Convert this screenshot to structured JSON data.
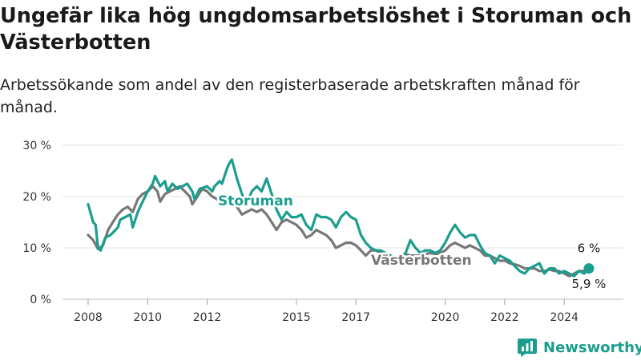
{
  "title": "Ungefär lika hög ungdomsarbetslöshet i Storuman och Västerbotten",
  "subtitle": "Arbetssökande som andel av den registerbaserade arbetskraften månad för månad.",
  "brand": {
    "name": "Newsworthy",
    "color": "#1a9e8e"
  },
  "chart_data": {
    "type": "line",
    "x_tick_labels": [
      "2008",
      "2010",
      "2012",
      "2015",
      "2017",
      "2020",
      "2022",
      "2024"
    ],
    "x_tick_values": [
      2008,
      2010,
      2012,
      2015,
      2017,
      2020,
      2022,
      2024
    ],
    "y_tick_labels": [
      "0 %",
      "10 %",
      "20 %",
      "30 %"
    ],
    "y_tick_values": [
      0,
      10,
      20,
      30
    ],
    "ylim": [
      0,
      30
    ],
    "xlim": [
      2008,
      2025.1
    ],
    "grid": true,
    "series": [
      {
        "name": "Västerbotten",
        "color": "#777777",
        "end_label": "5,9 %",
        "points": [
          [
            2008.0,
            12.5
          ],
          [
            2008.17,
            11.5
          ],
          [
            2008.33,
            9.8
          ],
          [
            2008.5,
            10.5
          ],
          [
            2008.67,
            13.5
          ],
          [
            2008.83,
            15.0
          ],
          [
            2009.0,
            16.5
          ],
          [
            2009.17,
            17.5
          ],
          [
            2009.33,
            18.0
          ],
          [
            2009.5,
            17.0
          ],
          [
            2009.67,
            19.5
          ],
          [
            2009.83,
            20.5
          ],
          [
            2010.0,
            21.0
          ],
          [
            2010.17,
            22.0
          ],
          [
            2010.33,
            21.0
          ],
          [
            2010.42,
            19.0
          ],
          [
            2010.58,
            20.5
          ],
          [
            2010.75,
            21.0
          ],
          [
            2010.92,
            21.5
          ],
          [
            2011.08,
            22.0
          ],
          [
            2011.25,
            21.0
          ],
          [
            2011.42,
            20.0
          ],
          [
            2011.5,
            18.5
          ],
          [
            2011.67,
            20.0
          ],
          [
            2011.83,
            21.5
          ],
          [
            2012.0,
            21.0
          ],
          [
            2012.17,
            20.0
          ],
          [
            2012.33,
            19.5
          ],
          [
            2012.5,
            19.0
          ],
          [
            2012.67,
            19.5
          ],
          [
            2012.83,
            19.5
          ],
          [
            2013.0,
            18.0
          ],
          [
            2013.17,
            16.5
          ],
          [
            2013.33,
            17.0
          ],
          [
            2013.5,
            17.5
          ],
          [
            2013.67,
            17.0
          ],
          [
            2013.83,
            17.5
          ],
          [
            2014.0,
            16.5
          ],
          [
            2014.17,
            15.0
          ],
          [
            2014.33,
            13.5
          ],
          [
            2014.5,
            15.0
          ],
          [
            2014.67,
            15.5
          ],
          [
            2014.83,
            15.0
          ],
          [
            2015.0,
            14.5
          ],
          [
            2015.17,
            13.5
          ],
          [
            2015.33,
            12.0
          ],
          [
            2015.5,
            12.5
          ],
          [
            2015.67,
            13.5
          ],
          [
            2015.83,
            13.0
          ],
          [
            2016.0,
            12.5
          ],
          [
            2016.17,
            11.5
          ],
          [
            2016.33,
            10.0
          ],
          [
            2016.5,
            10.5
          ],
          [
            2016.67,
            11.0
          ],
          [
            2016.83,
            11.0
          ],
          [
            2017.0,
            10.5
          ],
          [
            2017.17,
            9.5
          ],
          [
            2017.33,
            8.5
          ],
          [
            2017.5,
            9.5
          ],
          [
            2017.67,
            9.5
          ],
          [
            2017.83,
            9.0
          ],
          [
            2018.0,
            8.5
          ],
          [
            2018.17,
            8.0
          ],
          [
            2018.33,
            8.0
          ],
          [
            2018.5,
            8.5
          ],
          [
            2018.67,
            8.8
          ],
          [
            2018.83,
            8.5
          ],
          [
            2019.0,
            8.5
          ],
          [
            2019.17,
            8.5
          ],
          [
            2019.33,
            8.8
          ],
          [
            2019.5,
            9.0
          ],
          [
            2019.67,
            8.8
          ],
          [
            2019.83,
            9.0
          ],
          [
            2020.0,
            9.5
          ],
          [
            2020.17,
            10.5
          ],
          [
            2020.33,
            11.0
          ],
          [
            2020.5,
            10.5
          ],
          [
            2020.67,
            10.0
          ],
          [
            2020.83,
            10.5
          ],
          [
            2021.0,
            10.0
          ],
          [
            2021.17,
            9.5
          ],
          [
            2021.33,
            8.5
          ],
          [
            2021.5,
            8.5
          ],
          [
            2021.67,
            8.0
          ],
          [
            2021.83,
            7.5
          ],
          [
            2022.0,
            7.5
          ],
          [
            2022.17,
            7.0
          ],
          [
            2022.33,
            6.8
          ],
          [
            2022.5,
            6.5
          ],
          [
            2022.67,
            6.0
          ],
          [
            2022.83,
            6.0
          ],
          [
            2023.0,
            6.0
          ],
          [
            2023.17,
            5.5
          ],
          [
            2023.33,
            5.5
          ],
          [
            2023.5,
            5.8
          ],
          [
            2023.67,
            5.5
          ],
          [
            2023.83,
            5.5
          ],
          [
            2024.0,
            5.0
          ],
          [
            2024.17,
            4.5
          ],
          [
            2024.33,
            5.0
          ],
          [
            2024.5,
            5.5
          ],
          [
            2024.67,
            5.5
          ],
          [
            2024.83,
            5.9
          ]
        ]
      },
      {
        "name": "Storuman",
        "color": "#1a9e8e",
        "end_label": "6 %",
        "points": [
          [
            2008.0,
            18.5
          ],
          [
            2008.17,
            15.0
          ],
          [
            2008.25,
            14.5
          ],
          [
            2008.33,
            10.0
          ],
          [
            2008.42,
            9.5
          ],
          [
            2008.58,
            12.0
          ],
          [
            2008.75,
            12.5
          ],
          [
            2008.92,
            13.5
          ],
          [
            2009.0,
            14.0
          ],
          [
            2009.08,
            15.5
          ],
          [
            2009.25,
            16.0
          ],
          [
            2009.42,
            16.5
          ],
          [
            2009.5,
            14.0
          ],
          [
            2009.67,
            17.0
          ],
          [
            2009.83,
            19.0
          ],
          [
            2010.0,
            21.0
          ],
          [
            2010.17,
            22.5
          ],
          [
            2010.25,
            24.0
          ],
          [
            2010.42,
            22.0
          ],
          [
            2010.58,
            23.0
          ],
          [
            2010.67,
            21.0
          ],
          [
            2010.83,
            22.5
          ],
          [
            2011.0,
            21.5
          ],
          [
            2011.17,
            22.0
          ],
          [
            2011.33,
            22.5
          ],
          [
            2011.5,
            21.0
          ],
          [
            2011.58,
            19.5
          ],
          [
            2011.75,
            21.5
          ],
          [
            2012.0,
            22.0
          ],
          [
            2012.17,
            21.0
          ],
          [
            2012.25,
            22.0
          ],
          [
            2012.42,
            23.0
          ],
          [
            2012.5,
            22.5
          ],
          [
            2012.67,
            25.5
          ],
          [
            2012.75,
            26.5
          ],
          [
            2012.83,
            27.2
          ],
          [
            2013.0,
            23.5
          ],
          [
            2013.17,
            20.5
          ],
          [
            2013.33,
            18.5
          ],
          [
            2013.5,
            21.0
          ],
          [
            2013.67,
            22.0
          ],
          [
            2013.83,
            21.0
          ],
          [
            2014.0,
            23.5
          ],
          [
            2014.17,
            20.5
          ],
          [
            2014.33,
            17.5
          ],
          [
            2014.5,
            15.5
          ],
          [
            2014.67,
            17.0
          ],
          [
            2014.83,
            16.0
          ],
          [
            2015.0,
            16.0
          ],
          [
            2015.17,
            16.5
          ],
          [
            2015.33,
            14.5
          ],
          [
            2015.5,
            13.5
          ],
          [
            2015.67,
            16.5
          ],
          [
            2015.83,
            16.0
          ],
          [
            2016.0,
            16.0
          ],
          [
            2016.17,
            15.5
          ],
          [
            2016.33,
            14.0
          ],
          [
            2016.5,
            16.0
          ],
          [
            2016.67,
            17.0
          ],
          [
            2016.83,
            16.0
          ],
          [
            2017.0,
            15.5
          ],
          [
            2017.17,
            12.5
          ],
          [
            2017.33,
            11.0
          ],
          [
            2017.5,
            10.0
          ],
          [
            2017.67,
            9.5
          ],
          [
            2017.83,
            9.5
          ],
          [
            2018.0,
            9.0
          ],
          [
            2018.17,
            8.5
          ],
          [
            2018.33,
            8.0
          ],
          [
            2018.5,
            8.0
          ],
          [
            2018.67,
            9.0
          ],
          [
            2018.83,
            11.5
          ],
          [
            2019.0,
            10.0
          ],
          [
            2019.17,
            9.0
          ],
          [
            2019.33,
            9.5
          ],
          [
            2019.5,
            9.5
          ],
          [
            2019.67,
            9.0
          ],
          [
            2019.83,
            9.5
          ],
          [
            2020.0,
            11.0
          ],
          [
            2020.17,
            13.0
          ],
          [
            2020.33,
            14.5
          ],
          [
            2020.5,
            13.0
          ],
          [
            2020.67,
            12.0
          ],
          [
            2020.83,
            12.5
          ],
          [
            2021.0,
            12.5
          ],
          [
            2021.17,
            10.5
          ],
          [
            2021.33,
            9.0
          ],
          [
            2021.5,
            8.5
          ],
          [
            2021.67,
            7.0
          ],
          [
            2021.83,
            8.5
          ],
          [
            2022.0,
            8.0
          ],
          [
            2022.17,
            7.5
          ],
          [
            2022.33,
            6.5
          ],
          [
            2022.5,
            5.5
          ],
          [
            2022.67,
            5.0
          ],
          [
            2022.83,
            6.0
          ],
          [
            2023.0,
            6.5
          ],
          [
            2023.17,
            7.0
          ],
          [
            2023.33,
            5.0
          ],
          [
            2023.5,
            6.0
          ],
          [
            2023.67,
            6.0
          ],
          [
            2023.83,
            5.0
          ],
          [
            2024.0,
            5.5
          ],
          [
            2024.17,
            5.0
          ],
          [
            2024.33,
            4.5
          ],
          [
            2024.5,
            5.5
          ],
          [
            2024.67,
            5.0
          ],
          [
            2024.83,
            6.0
          ]
        ]
      }
    ]
  }
}
